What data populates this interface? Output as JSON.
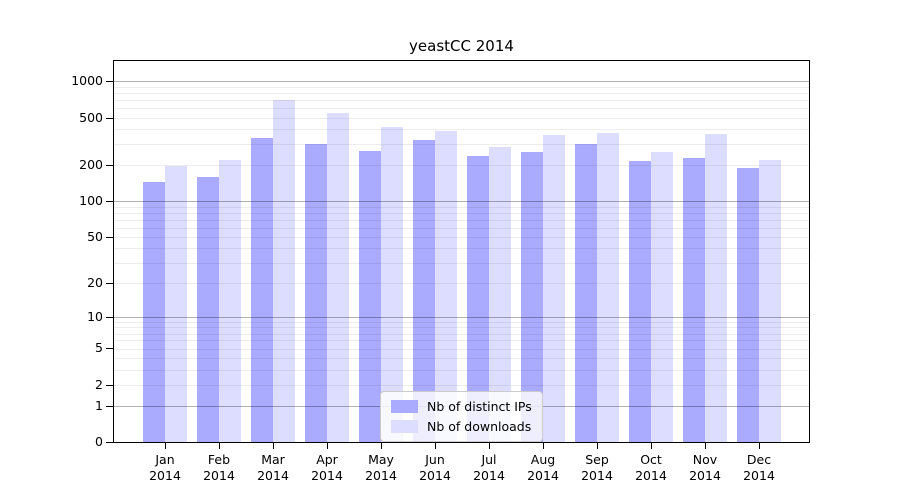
{
  "chart_data": {
    "type": "bar",
    "title": "yeastCC 2014",
    "categories": [
      "Jan 2014",
      "Feb 2014",
      "Mar 2014",
      "Apr 2014",
      "May 2014",
      "Jun 2014",
      "Jul 2014",
      "Aug 2014",
      "Sep 2014",
      "Oct 2014",
      "Nov 2014",
      "Dec 2014"
    ],
    "series": [
      {
        "name": "Nb of distinct IPs",
        "color": "#aaaaff",
        "values": [
          145,
          161,
          335,
          303,
          264,
          327,
          241,
          260,
          303,
          219,
          228,
          188
        ]
      },
      {
        "name": "Nb of downloads",
        "color": "#ddddff",
        "values": [
          198,
          223,
          704,
          549,
          420,
          389,
          287,
          360,
          374,
          260,
          362,
          223
        ]
      }
    ],
    "yscale": "log1p",
    "ylim": [
      0,
      1480
    ],
    "yticks": [
      0,
      1,
      2,
      5,
      10,
      20,
      50,
      100,
      200,
      500,
      1000
    ],
    "major_gridlines": [
      1,
      10,
      100,
      1000
    ],
    "minor_gridlines": [
      2,
      3,
      4,
      5,
      6,
      7,
      8,
      9,
      20,
      30,
      40,
      50,
      60,
      70,
      80,
      90,
      200,
      300,
      400,
      500,
      600,
      700,
      800,
      900
    ],
    "grid": true,
    "legend_position": "lower-center-inside",
    "colors": {
      "axis": "#000000",
      "major_grid": "rgba(0,0,0,0.30)",
      "minor_grid": "rgba(0,0,0,0.07)",
      "background": "#ffffff"
    }
  }
}
